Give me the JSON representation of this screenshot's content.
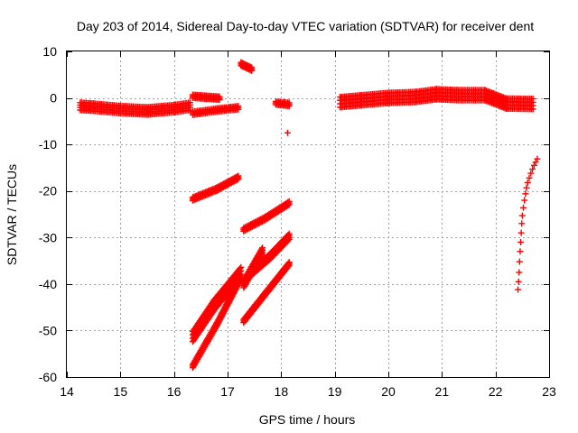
{
  "chart_data": {
    "type": "scatter",
    "title": "Day 203 of 2014, Sidereal Day-to-day VTEC variation (SDTVAR) for receiver dent",
    "xlabel": "GPS time / hours",
    "ylabel": "SDTVAR / TECUs",
    "xlim": [
      14,
      23
    ],
    "ylim": [
      -60,
      10
    ],
    "xticks": [
      14,
      15,
      16,
      17,
      18,
      19,
      20,
      21,
      22,
      23
    ],
    "yticks": [
      10,
      0,
      -10,
      -20,
      -30,
      -40,
      -50,
      -60
    ],
    "grid": true,
    "legend": "none",
    "marker": "plus",
    "color": "#ff0000",
    "series": [
      {
        "bands": [
          {
            "x": [
              14.25,
              14.5,
              15.0,
              15.5,
              16.0,
              16.3
            ],
            "y": [
              -1.8,
              -2.0,
              -2.5,
              -2.8,
              -2.3,
              -1.8
            ],
            "thickness": 1.6
          },
          {
            "x": [
              16.35,
              16.6,
              16.85
            ],
            "y": [
              0.4,
              0.2,
              0.0
            ],
            "thickness": 0.8
          },
          {
            "x": [
              16.35,
              16.8,
              17.2
            ],
            "y": [
              -3.2,
              -2.5,
              -2.0
            ],
            "thickness": 0.9
          },
          {
            "x": [
              17.25,
              17.45
            ],
            "y": [
              7.4,
              6.3
            ],
            "thickness": 0.9
          },
          {
            "x": [
              17.9,
              18.15
            ],
            "y": [
              -1.0,
              -1.3
            ],
            "thickness": 0.9
          },
          {
            "x": [
              19.1,
              19.5,
              20.0,
              20.5,
              20.9,
              21.3,
              21.8,
              22.2,
              22.7
            ],
            "y": [
              -0.9,
              -0.5,
              0.0,
              0.2,
              0.8,
              0.6,
              0.6,
              -1.2,
              -1.3
            ],
            "thickness": 2.2
          },
          {
            "x": [
              16.35,
              16.8,
              17.2
            ],
            "y": [
              -21.6,
              -19.5,
              -17.0
            ],
            "thickness": 0.9
          },
          {
            "x": [
              17.3,
              17.7,
              18.15
            ],
            "y": [
              -28.2,
              -25.8,
              -22.5
            ],
            "thickness": 0.9
          },
          {
            "x": [
              16.35,
              16.75,
              17.25
            ],
            "y": [
              -51.3,
              -44.5,
              -37.5
            ],
            "thickness": 2.2
          },
          {
            "x": [
              16.35,
              16.8,
              17.25
            ],
            "y": [
              -57.5,
              -48.5,
              -38.5
            ],
            "thickness": 1.0
          },
          {
            "x": [
              17.3,
              17.65
            ],
            "y": [
              -40.0,
              -33.0
            ],
            "thickness": 1.6
          },
          {
            "x": [
              17.4,
              17.8,
              18.15
            ],
            "y": [
              -38.0,
              -34.0,
              -29.8
            ],
            "thickness": 1.2
          },
          {
            "x": [
              17.3,
              17.7,
              18.15
            ],
            "y": [
              -47.8,
              -42.0,
              -35.5
            ],
            "thickness": 1.0
          }
        ],
        "points": [
          {
            "x": 18.12,
            "y": -7.5
          },
          {
            "x": 22.42,
            "y": -41.2
          },
          {
            "x": 22.43,
            "y": -39.5
          },
          {
            "x": 22.44,
            "y": -37.5
          },
          {
            "x": 22.45,
            "y": -35.2
          },
          {
            "x": 22.46,
            "y": -33.0
          },
          {
            "x": 22.47,
            "y": -31.0
          },
          {
            "x": 22.48,
            "y": -29.0
          },
          {
            "x": 22.49,
            "y": -27.0
          },
          {
            "x": 22.5,
            "y": -25.3
          },
          {
            "x": 22.52,
            "y": -23.6
          },
          {
            "x": 22.54,
            "y": -22.0
          },
          {
            "x": 22.56,
            "y": -20.6
          },
          {
            "x": 22.58,
            "y": -19.3
          },
          {
            "x": 22.6,
            "y": -18.2
          },
          {
            "x": 22.63,
            "y": -17.2
          },
          {
            "x": 22.66,
            "y": -16.2
          },
          {
            "x": 22.69,
            "y": -15.3
          },
          {
            "x": 22.72,
            "y": -14.5
          },
          {
            "x": 22.75,
            "y": -13.8
          },
          {
            "x": 22.78,
            "y": -13.1
          }
        ]
      }
    ]
  }
}
